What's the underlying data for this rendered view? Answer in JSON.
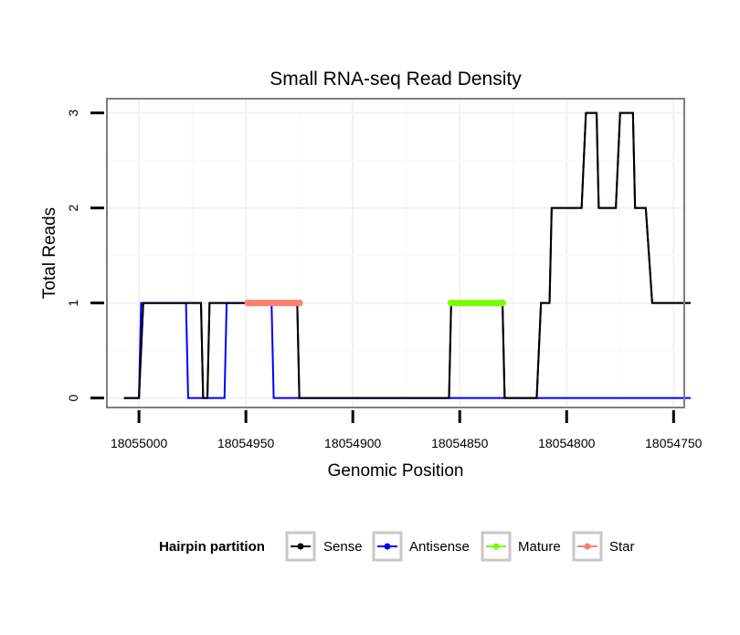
{
  "chart_data": {
    "type": "line",
    "title": "Small RNA-seq Read Density",
    "xlabel": "Genomic Position",
    "ylabel": "Total Reads",
    "x_reversed": true,
    "xlim": [
      18055015,
      18054745
    ],
    "ylim": [
      -0.1,
      3.15
    ],
    "x_ticks": [
      18055000,
      18054950,
      18054900,
      18054850,
      18054800,
      18054750
    ],
    "x_tick_labels": [
      "18055000",
      "18054950",
      "18054900",
      "18054850",
      "18054800",
      "18054750"
    ],
    "y_ticks": [
      0,
      1,
      2,
      3
    ],
    "y_tick_labels": [
      "0",
      "1",
      "2",
      "3"
    ],
    "grid": true,
    "legend": {
      "title": "Hairpin partition",
      "position": "bottom",
      "entries": [
        {
          "name": "Sense",
          "color": "#000000"
        },
        {
          "name": "Antisense",
          "color": "#0000ff"
        },
        {
          "name": "Mature",
          "color": "#7cfc00"
        },
        {
          "name": "Star",
          "color": "#fa8072"
        }
      ]
    },
    "series": [
      {
        "name": "Sense",
        "color": "#000000",
        "x": [
          18055007,
          18055000,
          18054998,
          18054971,
          18054970,
          18054968,
          18054967,
          18054926,
          18054925,
          18054855,
          18054854,
          18054830,
          18054829,
          18054814,
          18054812,
          18054808,
          18054807,
          18054793,
          18054791,
          18054786,
          18054785,
          18054777,
          18054775,
          18054769,
          18054768,
          18054763,
          18054760,
          18054742
        ],
        "y": [
          0,
          0,
          1,
          1,
          0,
          0,
          1,
          1,
          0,
          0,
          1,
          1,
          0,
          0,
          1,
          1,
          2,
          2,
          3,
          3,
          2,
          2,
          3,
          3,
          2,
          2,
          1,
          1
        ]
      },
      {
        "name": "Antisense",
        "color": "#0000ff",
        "x": [
          18055007,
          18055000,
          18054999,
          18054978,
          18054977,
          18054960,
          18054959,
          18054938,
          18054937,
          18054742
        ],
        "y": [
          0,
          0,
          1,
          1,
          0,
          0,
          1,
          1,
          0,
          0
        ]
      },
      {
        "name": "Mature",
        "color": "#7cfc00",
        "x": [
          18054854,
          18054830
        ],
        "y": [
          1,
          1
        ]
      },
      {
        "name": "Star",
        "color": "#fa8072",
        "x": [
          18054949,
          18054925
        ],
        "y": [
          1,
          1
        ]
      }
    ]
  }
}
